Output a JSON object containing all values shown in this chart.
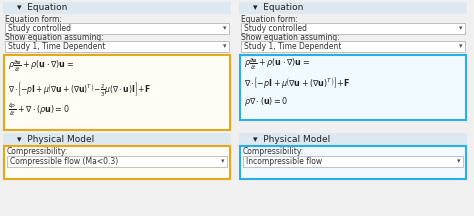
{
  "bg_color": "#f0f0f0",
  "panel_bg": "#f5f5f5",
  "header_bg": "#dde8f0",
  "dropdown_bg": "#ffffff",
  "dropdown_border": "#aaaaaa",
  "highlight_left": "#e6a817",
  "highlight_right": "#29aee6",
  "text_color": "#333333",
  "section_header_left": "Equation",
  "section_header_right": "Equation",
  "label_form": "Equation form:",
  "dropdown_form": "Study controlled",
  "label_assuming": "Show equation assuming:",
  "dropdown_assuming": "Study 1, Time Dependent",
  "eq_line1_left": "$\\rho\\frac{\\partial\\mathbf{u}}{\\partial t} + \\rho(\\mathbf{u} \\cdot \\nabla)\\mathbf{u} =$",
  "eq_line2_left": "$\\nabla \\cdot \\left[-p\\mathbf{I} + \\mu\\left(\\nabla\\mathbf{u} + (\\nabla\\mathbf{u})^T\\right) - \\frac{2}{3}\\mu(\\nabla \\cdot \\mathbf{u})\\mathbf{I}\\right] + \\mathbf{F}$",
  "eq_line3_left": "$\\frac{\\partial\\rho}{\\partial t} + \\nabla \\cdot (\\rho\\mathbf{u}) = 0$",
  "eq_line1_right": "$\\rho\\frac{\\partial\\mathbf{u}}{\\partial t} + \\rho(\\mathbf{u} \\cdot \\nabla)\\mathbf{u} =$",
  "eq_line2_right": "$\\nabla \\cdot \\left[-p\\mathbf{I} + \\mu\\left(\\nabla\\mathbf{u} + (\\nabla\\mathbf{u})^T\\right)\\right] + \\mathbf{F}$",
  "eq_line3_right": "$\\rho\\nabla \\cdot (\\mathbf{u}) = 0$",
  "phys_header": "Physical Model",
  "comp_label": "Compressibility:",
  "comp_left": "Compressible flow (Ma<0.3)",
  "comp_right": "Incompressible flow"
}
